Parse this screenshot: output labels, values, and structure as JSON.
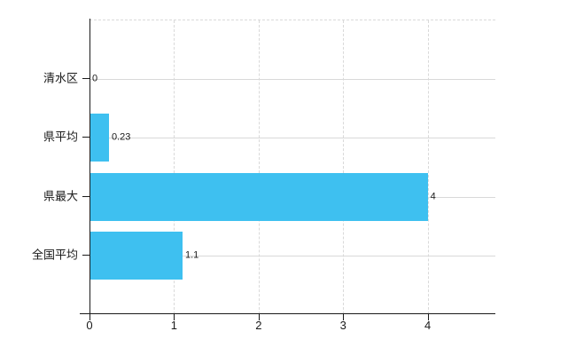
{
  "chart_data": {
    "type": "bar",
    "orientation": "horizontal",
    "categories": [
      "清水区",
      "県平均",
      "県最大",
      "全国平均"
    ],
    "values": [
      0,
      0.23,
      4,
      1.1
    ],
    "value_labels": [
      "0",
      "0.23",
      "4",
      "1.1"
    ],
    "x_ticks": [
      0,
      1,
      2,
      3,
      4
    ],
    "x_tick_labels": [
      "0",
      "1",
      "2",
      "3",
      "4"
    ],
    "xlim": [
      0,
      4.8
    ],
    "grid": true,
    "legend": false,
    "colors": {
      "bar": "#3ec0f0",
      "grid": "#d9d9d9",
      "axis": "#1a1a1a",
      "text": "#1a1a1a",
      "background": "#ffffff"
    }
  }
}
